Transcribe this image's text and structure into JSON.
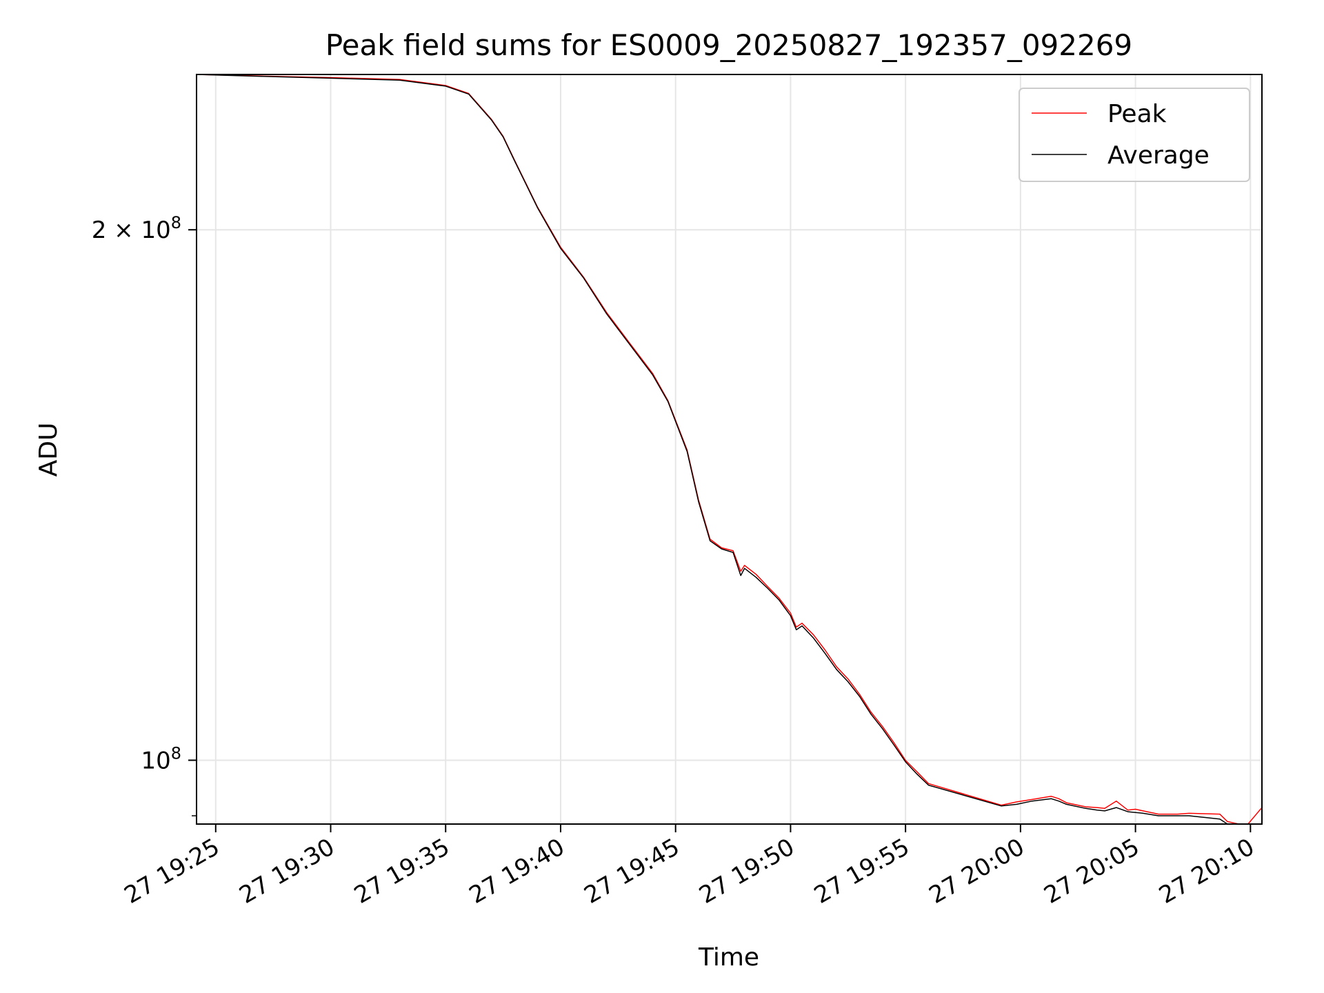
{
  "chart_data": {
    "type": "line",
    "title": "Peak field sums for ES0009_20250827_192357_092269",
    "xlabel": "Time",
    "ylabel": "ADU",
    "y_scale": "log",
    "x_range": [
      "2025-08-27 19:24:10",
      "2025-08-27 20:10:30"
    ],
    "y_range": [
      92000000,
      245000000
    ],
    "grid": true,
    "legend_position": "top-right",
    "x_ticks": [
      {
        "t": "2025-08-27 19:25",
        "label": "27 19:25"
      },
      {
        "t": "2025-08-27 19:30",
        "label": "27 19:30"
      },
      {
        "t": "2025-08-27 19:35",
        "label": "27 19:35"
      },
      {
        "t": "2025-08-27 19:40",
        "label": "27 19:40"
      },
      {
        "t": "2025-08-27 19:45",
        "label": "27 19:45"
      },
      {
        "t": "2025-08-27 19:50",
        "label": "27 19:50"
      },
      {
        "t": "2025-08-27 19:55",
        "label": "27 19:55"
      },
      {
        "t": "2025-08-27 20:00",
        "label": "27 20:00"
      },
      {
        "t": "2025-08-27 20:05",
        "label": "27 20:05"
      },
      {
        "t": "2025-08-27 20:10",
        "label": "27 20:10"
      }
    ],
    "y_ticks_major": [
      {
        "value": 200000000,
        "label": "2 × 10",
        "exp": "8"
      },
      {
        "value": 100000000,
        "label": "10",
        "exp": "8"
      }
    ],
    "y_ticks_minor": [
      93000000
    ],
    "colors": {
      "Peak": "#ff0000",
      "Average": "#000000"
    },
    "series": [
      {
        "name": "Peak",
        "x": [
          "19:24:10",
          "19:27:00",
          "19:30:00",
          "19:33:00",
          "19:35:00",
          "19:36:00",
          "19:37:00",
          "19:37:30",
          "19:38:00",
          "19:39:00",
          "19:40:00",
          "19:41:00",
          "19:42:00",
          "19:43:00",
          "19:44:00",
          "19:44:40",
          "19:45:30",
          "19:46:00",
          "19:46:30",
          "19:47:00",
          "19:47:30",
          "19:47:50",
          "19:48:00",
          "19:48:30",
          "19:49:00",
          "19:49:30",
          "19:50:00",
          "19:50:15",
          "19:50:30",
          "19:51:00",
          "19:51:30",
          "19:52:00",
          "19:52:30",
          "19:53:00",
          "19:53:30",
          "19:54:00",
          "19:54:30",
          "19:55:00",
          "19:55:30",
          "19:56:00",
          "19:59:10",
          "19:59:50",
          "20:00:30",
          "20:01:20",
          "20:01:40",
          "20:02:00",
          "20:02:50",
          "20:03:20",
          "20:03:40",
          "20:04:10",
          "20:04:40",
          "20:05:00",
          "20:05:20",
          "20:06:00",
          "20:06:50",
          "20:07:20",
          "20:08:40",
          "20:09:00",
          "20:09:20",
          "20:09:50",
          "20:10:30"
        ],
        "values": [
          245000000,
          244500000,
          244000000,
          243400000,
          241500000,
          239000000,
          231000000,
          226000000,
          219000000,
          206000000,
          195500000,
          188000000,
          179500000,
          172500000,
          165800000,
          160000000,
          150000000,
          140500000,
          133500000,
          132000000,
          131500000,
          128000000,
          129000000,
          127500000,
          125500000,
          123600000,
          121200000,
          119000000,
          119600000,
          117800000,
          115500000,
          113000000,
          111200000,
          109000000,
          106500000,
          104500000,
          102300000,
          100000000,
          98500000,
          97000000,
          94300000,
          94700000,
          95000000,
          95400000,
          95100000,
          94600000,
          94100000,
          94000000,
          93900000,
          94800000,
          93700000,
          93800000,
          93600000,
          93200000,
          93200000,
          93300000,
          93200000,
          92300000,
          92100000,
          91800000,
          94000000
        ]
      },
      {
        "name": "Average",
        "x": [
          "19:24:10",
          "19:27:00",
          "19:30:00",
          "19:33:00",
          "19:35:00",
          "19:36:00",
          "19:37:00",
          "19:37:30",
          "19:38:00",
          "19:39:00",
          "19:40:00",
          "19:41:00",
          "19:42:00",
          "19:43:00",
          "19:44:00",
          "19:44:40",
          "19:45:30",
          "19:46:00",
          "19:46:30",
          "19:47:00",
          "19:47:30",
          "19:47:50",
          "19:48:00",
          "19:48:30",
          "19:49:00",
          "19:49:30",
          "19:50:00",
          "19:50:15",
          "19:50:30",
          "19:51:00",
          "19:51:30",
          "19:52:00",
          "19:52:30",
          "19:53:00",
          "19:53:30",
          "19:54:00",
          "19:54:30",
          "19:55:00",
          "19:55:30",
          "19:56:00",
          "19:59:10",
          "19:59:50",
          "20:00:30",
          "20:01:20",
          "20:01:40",
          "20:02:00",
          "20:02:50",
          "20:03:20",
          "20:03:40",
          "20:04:10",
          "20:04:40",
          "20:05:00",
          "20:05:20",
          "20:06:00",
          "20:06:50",
          "20:07:20",
          "20:08:40",
          "20:09:00",
          "20:09:20",
          "20:09:50",
          "20:10:30"
        ],
        "values": [
          245000000,
          244400000,
          243800000,
          243200000,
          241300000,
          238800000,
          230800000,
          225800000,
          218800000,
          205800000,
          195200000,
          187800000,
          179200000,
          172200000,
          165500000,
          159800000,
          149700000,
          140200000,
          133200000,
          131800000,
          131200000,
          127300000,
          128500000,
          127000000,
          125200000,
          123300000,
          120800000,
          118600000,
          119200000,
          117300000,
          115000000,
          112600000,
          110800000,
          108700000,
          106200000,
          104200000,
          102000000,
          99800000,
          98200000,
          96800000,
          94200000,
          94400000,
          94800000,
          95100000,
          94800000,
          94400000,
          93900000,
          93700000,
          93600000,
          94000000,
          93500000,
          93400000,
          93300000,
          93000000,
          93000000,
          93000000,
          92600000,
          92000000,
          91900000,
          91700000,
          91500000
        ]
      }
    ]
  }
}
